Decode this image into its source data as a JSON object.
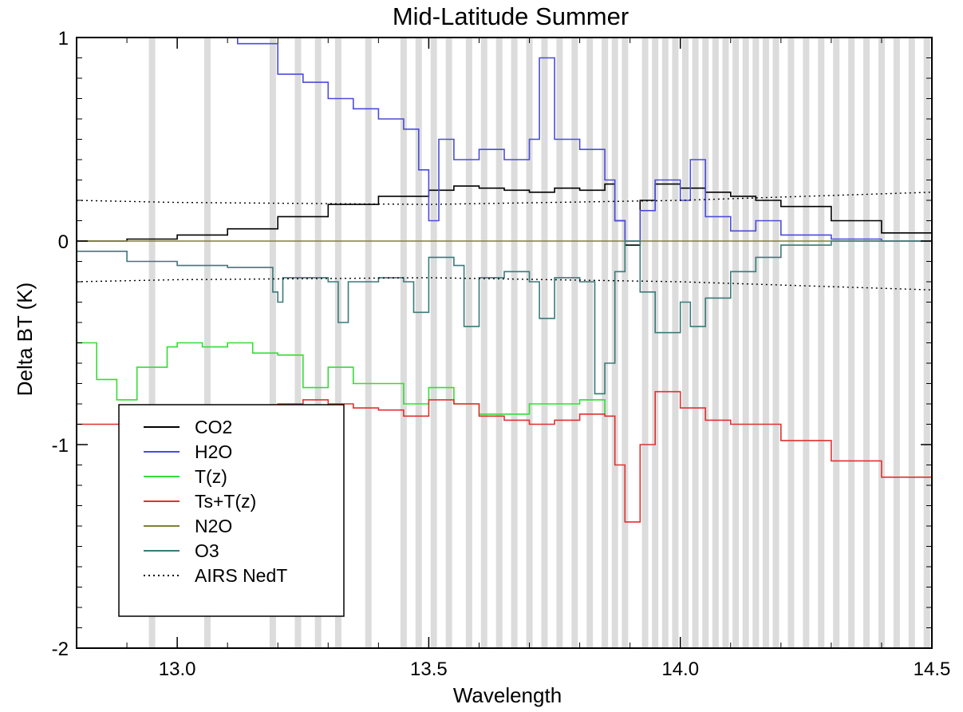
{
  "chart_data": {
    "type": "line",
    "title": "Mid-Latitude Summer",
    "xlabel": "Wavelength",
    "ylabel": "Delta BT (K)",
    "xlim": [
      12.8,
      14.5
    ],
    "ylim": [
      -2,
      1
    ],
    "x_ticks": [
      13.0,
      13.5,
      14.0,
      14.5
    ],
    "x_tick_labels": [
      "13.0",
      "13.5",
      "14.0",
      "14.5"
    ],
    "y_ticks": [
      1,
      0,
      -1,
      -2
    ],
    "y_tick_labels": [
      "1",
      "0",
      "-1",
      "-2"
    ],
    "legend": {
      "placement": "bottom-left"
    },
    "highlight_band_color": "#dcdcdc",
    "highlight_bands": [
      12.95,
      13.06,
      13.19,
      13.24,
      13.28,
      13.32,
      13.38,
      13.45,
      13.48,
      13.51,
      13.54,
      13.58,
      13.61,
      13.64,
      13.67,
      13.7,
      13.73,
      13.76,
      13.79,
      13.82,
      13.85,
      13.87,
      13.89,
      13.93,
      13.95,
      13.97,
      13.99,
      14.01,
      14.03,
      14.05,
      14.07,
      14.09,
      14.11,
      14.13,
      14.15,
      14.17,
      14.19,
      14.22,
      14.25,
      14.28,
      14.31,
      14.34,
      14.37,
      14.4,
      14.43,
      14.46,
      14.49
    ],
    "series": [
      {
        "name": "CO2",
        "color": "#000000",
        "style": "solid",
        "x": [
          12.8,
          12.9,
          13.0,
          13.1,
          13.2,
          13.3,
          13.4,
          13.5,
          13.55,
          13.6,
          13.65,
          13.7,
          13.75,
          13.8,
          13.85,
          13.87,
          13.89,
          13.92,
          13.95,
          14.0,
          14.05,
          14.1,
          14.15,
          14.2,
          14.3,
          14.4,
          14.5
        ],
        "y": [
          0.0,
          0.01,
          0.03,
          0.06,
          0.12,
          0.18,
          0.22,
          0.25,
          0.27,
          0.26,
          0.25,
          0.24,
          0.26,
          0.25,
          0.28,
          0.1,
          -0.02,
          0.2,
          0.28,
          0.26,
          0.24,
          0.22,
          0.2,
          0.17,
          0.1,
          0.04,
          0.02
        ]
      },
      {
        "name": "H2O",
        "color": "#4b4bdc",
        "style": "solid",
        "x": [
          13.07,
          13.12,
          13.2,
          13.25,
          13.3,
          13.35,
          13.4,
          13.45,
          13.48,
          13.5,
          13.52,
          13.55,
          13.6,
          13.65,
          13.7,
          13.72,
          13.75,
          13.8,
          13.85,
          13.87,
          13.89,
          13.92,
          13.95,
          14.0,
          14.02,
          14.05,
          14.1,
          14.15,
          14.2,
          14.3,
          14.4,
          14.5
        ],
        "y": [
          1.0,
          0.97,
          0.82,
          0.78,
          0.7,
          0.65,
          0.6,
          0.55,
          0.35,
          0.1,
          0.5,
          0.4,
          0.45,
          0.4,
          0.5,
          0.9,
          0.5,
          0.45,
          0.3,
          0.1,
          0.0,
          0.15,
          0.3,
          0.2,
          0.4,
          0.12,
          0.05,
          0.1,
          0.03,
          0.01,
          0.0,
          0.0
        ]
      },
      {
        "name": "T(z)",
        "color": "#33dd33",
        "style": "solid",
        "x": [
          12.8,
          12.84,
          12.88,
          12.92,
          12.98,
          13.0,
          13.05,
          13.1,
          13.15,
          13.2,
          13.25,
          13.3,
          13.35,
          13.4,
          13.45,
          13.5,
          13.55,
          13.6,
          13.7,
          13.8,
          13.85
        ],
        "y": [
          -0.5,
          -0.68,
          -0.78,
          -0.62,
          -0.52,
          -0.5,
          -0.52,
          -0.5,
          -0.55,
          -0.56,
          -0.72,
          -0.62,
          -0.7,
          -0.7,
          -0.8,
          -0.72,
          -0.8,
          -0.85,
          -0.8,
          -0.78,
          -0.85
        ]
      },
      {
        "name": "Ts+T(z)",
        "color": "#e03030",
        "style": "solid",
        "x": [
          12.8,
          12.9,
          13.0,
          13.1,
          13.15,
          13.2,
          13.25,
          13.3,
          13.35,
          13.4,
          13.45,
          13.5,
          13.55,
          13.6,
          13.65,
          13.7,
          13.75,
          13.8,
          13.85,
          13.87,
          13.89,
          13.92,
          13.95,
          14.0,
          14.05,
          14.1,
          14.2,
          14.3,
          14.4,
          14.5
        ],
        "y": [
          -0.9,
          -0.89,
          -0.88,
          -0.86,
          -0.84,
          -0.8,
          -0.78,
          -0.8,
          -0.82,
          -0.83,
          -0.86,
          -0.78,
          -0.8,
          -0.86,
          -0.88,
          -0.9,
          -0.88,
          -0.85,
          -0.86,
          -1.1,
          -1.38,
          -1.0,
          -0.74,
          -0.82,
          -0.88,
          -0.9,
          -0.98,
          -1.08,
          -1.16,
          -1.26
        ]
      },
      {
        "name": "N2O",
        "color": "#808030",
        "style": "solid",
        "x": [
          12.8,
          14.5
        ],
        "y": [
          0.0,
          0.0
        ]
      },
      {
        "name": "O3",
        "color": "#3a7a7a",
        "style": "solid",
        "x": [
          12.8,
          12.9,
          13.0,
          13.1,
          13.19,
          13.2,
          13.21,
          13.3,
          13.32,
          13.34,
          13.4,
          13.45,
          13.47,
          13.5,
          13.55,
          13.57,
          13.6,
          13.65,
          13.7,
          13.72,
          13.75,
          13.8,
          13.83,
          13.85,
          13.87,
          13.89,
          13.92,
          13.95,
          14.0,
          14.02,
          14.05,
          14.1,
          14.15,
          14.2,
          14.3,
          14.5
        ],
        "y": [
          -0.05,
          -0.1,
          -0.12,
          -0.13,
          -0.25,
          -0.3,
          -0.18,
          -0.2,
          -0.4,
          -0.2,
          -0.18,
          -0.2,
          -0.35,
          -0.08,
          -0.12,
          -0.42,
          -0.18,
          -0.15,
          -0.2,
          -0.38,
          -0.18,
          -0.2,
          -0.75,
          -0.6,
          -0.15,
          0.0,
          -0.25,
          -0.45,
          -0.3,
          -0.42,
          -0.28,
          -0.15,
          -0.08,
          -0.02,
          0.0,
          0.0
        ]
      },
      {
        "name": "AIRS NedT",
        "color": "#000000",
        "style": "dotted",
        "band": "upper",
        "x": [
          12.8,
          13.0,
          13.5,
          14.0,
          14.5
        ],
        "y": [
          0.2,
          0.19,
          0.18,
          0.2,
          0.24
        ]
      },
      {
        "name": "AIRS NedT",
        "color": "#000000",
        "style": "dotted",
        "band": "lower",
        "x": [
          12.8,
          13.0,
          13.5,
          14.0,
          14.5
        ],
        "y": [
          -0.2,
          -0.19,
          -0.18,
          -0.2,
          -0.24
        ]
      }
    ]
  }
}
